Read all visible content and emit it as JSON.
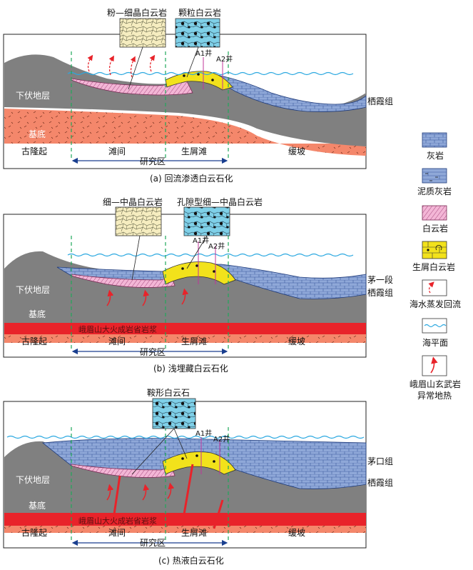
{
  "panels": [
    {
      "caption": "(a) 回流渗透白云石化",
      "insets": [
        "粉—细晶白云岩",
        "颗粒白云岩"
      ],
      "wells": [
        "A1井",
        "A2井"
      ],
      "layers": [
        "下伏地层",
        "基底"
      ],
      "formations": [
        "栖霞组"
      ],
      "zones": [
        "古隆起",
        "滩间",
        "研究区",
        "生屑滩",
        "缓坡"
      ]
    },
    {
      "caption": "(b) 浅埋藏白云石化",
      "insets": [
        "细—中晶白云岩",
        "孔隙型细—中晶白云岩"
      ],
      "wells": [
        "A1井",
        "A2井"
      ],
      "layers": [
        "下伏地层",
        "基底"
      ],
      "formations": [
        "茅一段",
        "栖霞组"
      ],
      "magma": "峨眉山大火成岩省岩浆",
      "zones": [
        "古隆起",
        "滩间",
        "研究区",
        "生屑滩",
        "缓坡"
      ]
    },
    {
      "caption": "(c) 热液白云石化",
      "insets": [
        "鞍形白云石"
      ],
      "wells": [
        "A1井",
        "A2井"
      ],
      "layers": [
        "下伏地层",
        "基底"
      ],
      "formations": [
        "茅口组",
        "栖霞组"
      ],
      "magma": "峨眉山大火成岩省岩浆",
      "zones": [
        "古隆起",
        "滩间",
        "研究区",
        "生屑滩",
        "缓坡"
      ]
    }
  ],
  "legend": [
    {
      "label": "灰岩",
      "swatch": "limestone"
    },
    {
      "label": "泥质灰岩",
      "swatch": "argillaceous-limestone"
    },
    {
      "label": "白云岩",
      "swatch": "dolomite"
    },
    {
      "label": "生屑白云岩",
      "swatch": "bioclastic-dolomite"
    },
    {
      "label": "海水蒸发回流",
      "swatch": "evaporation-reflux"
    },
    {
      "label": "海平面",
      "swatch": "sea-level"
    },
    {
      "label": "峨眉山玄武岩异常地热",
      "label_lines": [
        "峨眉山玄武岩",
        "异常地热"
      ],
      "swatch": "geothermal-anomaly"
    }
  ],
  "colors": {
    "basement": "#f4876b",
    "magma": "#e8232a",
    "underlying": "#808080",
    "limestone": "#8fa8d8",
    "limestone_dark": "#5b7ec6",
    "dolomite": "#f3b6d6",
    "bioclastic": "#f2e21b",
    "sea": "#2aa8e0",
    "guide": "#1fa85a",
    "arrow": "#e8232a",
    "well": "#c0349a"
  }
}
